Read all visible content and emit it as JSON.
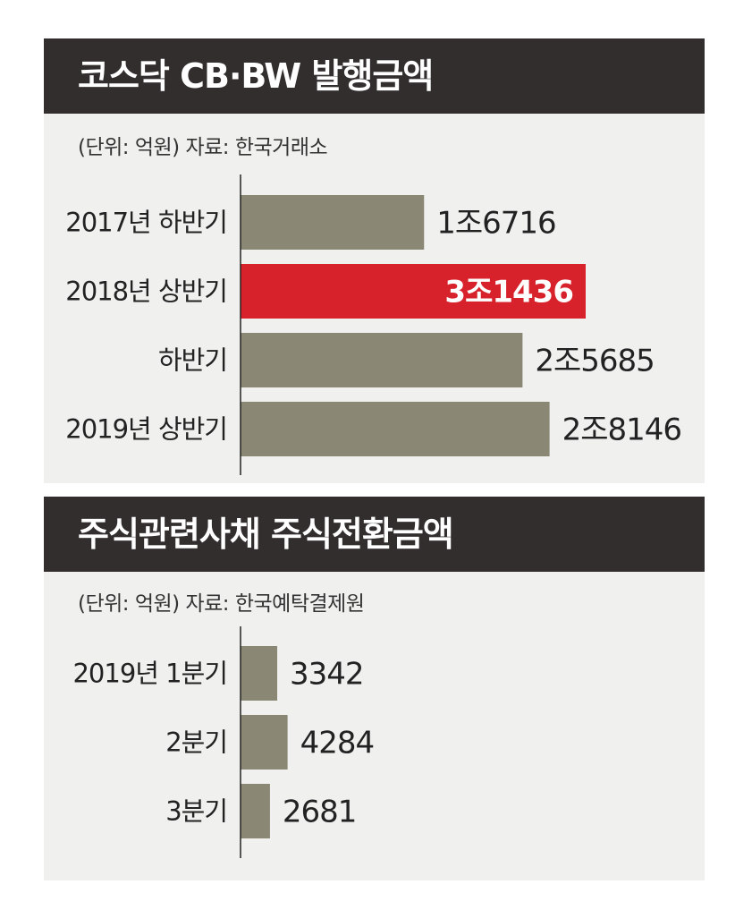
{
  "colors": {
    "bar": "#8a8775",
    "highlight": "#d7222b",
    "title_bg": "#322e2d",
    "panel_bg": "#f0f0ee"
  },
  "chart_data": [
    {
      "type": "bar",
      "orientation": "horizontal",
      "title": "코스닥 CB·BW 발행금액",
      "subtitle": "(단위: 억원) 자료: 한국거래소",
      "categories": [
        "2017년 하반기",
        "2018년 상반기",
        "하반기",
        "2019년 상반기"
      ],
      "values": [
        16716,
        31436,
        25685,
        28146
      ],
      "value_labels": [
        "1조6716",
        "3조1436",
        "2조5685",
        "2조8146"
      ],
      "highlight_index": 1,
      "xlim": [
        0,
        31436
      ]
    },
    {
      "type": "bar",
      "orientation": "horizontal",
      "title": "주식관련사채 주식전환금액",
      "subtitle": "(단위: 억원) 자료: 한국예탁결제원",
      "categories": [
        "2019년 1분기",
        "2분기",
        "3분기"
      ],
      "values": [
        3342,
        4284,
        2681
      ],
      "value_labels": [
        "3342",
        "4284",
        "2681"
      ],
      "highlight_index": null,
      "xlim": [
        0,
        31436
      ]
    }
  ]
}
